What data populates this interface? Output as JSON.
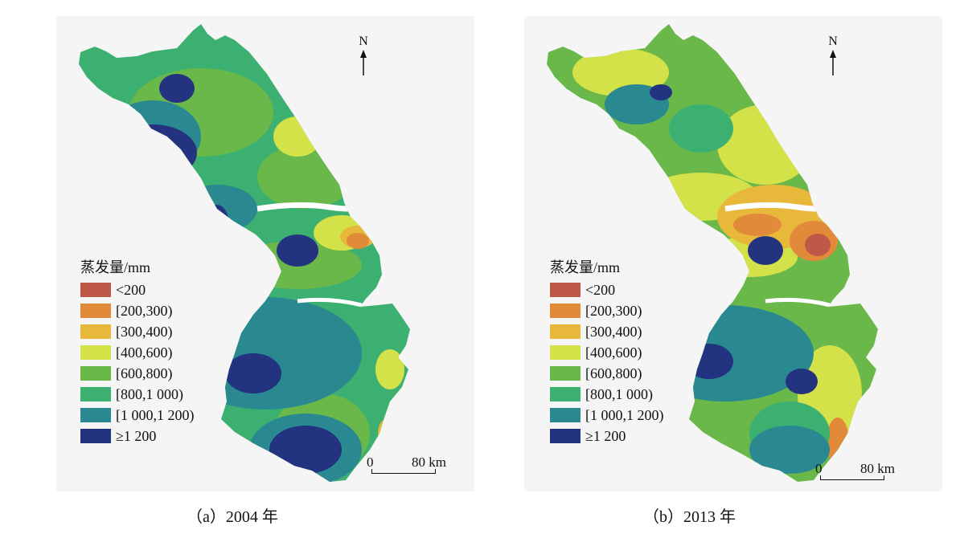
{
  "legend": {
    "title": "蒸发量/mm",
    "classes": [
      {
        "label": "<200",
        "color": "#c0584a"
      },
      {
        "label": "[200,300)",
        "color": "#e08a3a"
      },
      {
        "label": "[300,400)",
        "color": "#e8b83a"
      },
      {
        "label": "[400,600)",
        "color": "#d4e24a"
      },
      {
        "label": "[600,800)",
        "color": "#6ab84a"
      },
      {
        "label": "[800,1 000)",
        "color": "#3cb070"
      },
      {
        "label": "[1 000,1 200)",
        "color": "#2a8890"
      },
      {
        "label": "≥1 200",
        "color": "#23337f"
      }
    ]
  },
  "north_label": "N",
  "scalebar": {
    "zero": "0",
    "max": "80 km"
  },
  "panels": [
    {
      "caption": "（a）2004 年",
      "dominant_class": "[800,1 000)"
    },
    {
      "caption": "（b）2013 年",
      "dominant_class": "[600,800)"
    }
  ],
  "colors": {
    "water": "#ffffff",
    "background": "#f5f5f5"
  }
}
